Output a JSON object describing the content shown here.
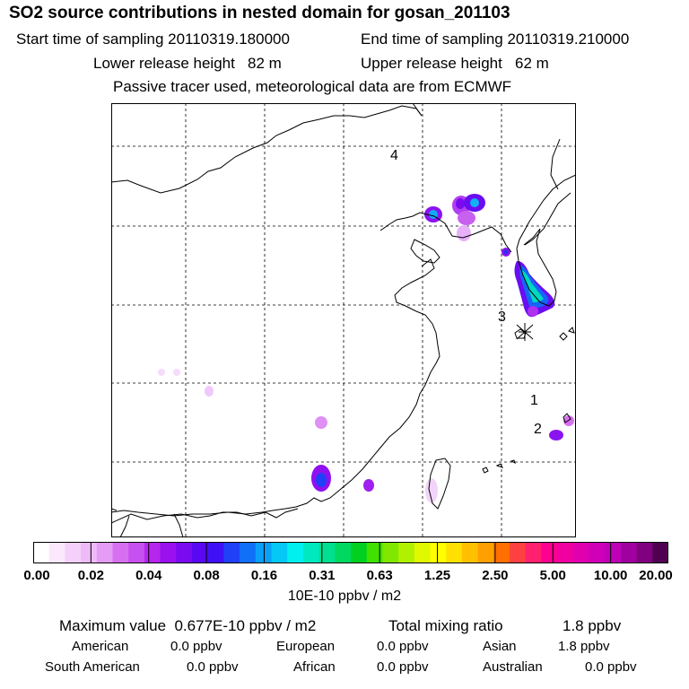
{
  "header": {
    "title": "SO2 source contributions in nested domain for gosan_201103",
    "start_time": "Start time of sampling 20110319.180000",
    "end_time": "End time of sampling 20110319.210000",
    "lower_height": "Lower release height   82 m",
    "upper_height": "Upper release height   62 m",
    "note": "Passive tracer used, meteorological data are from ECMWF"
  },
  "map": {
    "markers": [
      "4",
      "3",
      "1",
      "2"
    ],
    "release_site_icon": "asterisk-icon"
  },
  "colorbar": {
    "colors": [
      "#ffffff",
      "#fbe8fd",
      "#f5d0fb",
      "#eebaf9",
      "#e49cf5",
      "#d670f1",
      "#c84ff0",
      "#b726ef",
      "#9a10ef",
      "#7a0af0",
      "#5a08f2",
      "#3f10f5",
      "#2040f7",
      "#1070f8",
      "#08a0f8",
      "#04c8f5",
      "#00f0f0",
      "#00e8c0",
      "#00e090",
      "#00d860",
      "#00d020",
      "#40e000",
      "#80e800",
      "#b0f000",
      "#e0f800",
      "#ffff00",
      "#ffe000",
      "#ffc000",
      "#ffa000",
      "#ff7000",
      "#ff4040",
      "#ff2070",
      "#ff0090",
      "#f000a0",
      "#e000b0",
      "#d000b8",
      "#c000b8",
      "#a000a0",
      "#800080",
      "#500050"
    ],
    "labels": [
      "0.00",
      "0.02",
      "0.04",
      "0.08",
      "0.16",
      "0.31",
      "0.63",
      "1.25",
      "2.50",
      "5.00",
      "10.00",
      "20.00"
    ],
    "unit": "10E-10 ppbv / m2"
  },
  "summary": {
    "max_value": "Maximum value  0.677E-10 ppbv / m2",
    "total_label": "Total mixing ratio",
    "total_value": "1.8 ppbv",
    "regions": [
      {
        "name": "American",
        "value": "0.0 ppbv"
      },
      {
        "name": "European",
        "value": "0.0 ppbv"
      },
      {
        "name": "Asian",
        "value": "1.8 ppbv"
      },
      {
        "name": "South American",
        "value": "0.0 ppbv"
      },
      {
        "name": "African",
        "value": "0.0 ppbv"
      },
      {
        "name": "Australian",
        "value": "0.0 ppbv"
      }
    ]
  }
}
